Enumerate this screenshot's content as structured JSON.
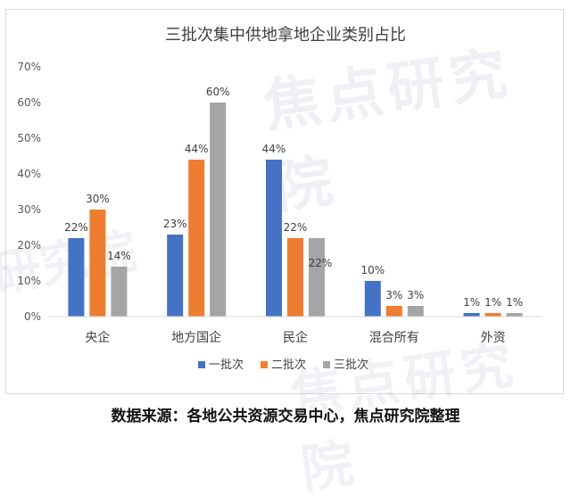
{
  "chart_data": {
    "type": "bar",
    "title": "三批次集中供地拿地企业类别占比",
    "categories": [
      "央企",
      "地方国企",
      "民企",
      "混合所有",
      "外资"
    ],
    "series": [
      {
        "name": "一批次",
        "color": "#4472C4",
        "values": [
          22,
          23,
          44,
          10,
          1
        ]
      },
      {
        "name": "二批次",
        "color": "#ED7D31",
        "values": [
          30,
          44,
          22,
          3,
          1
        ]
      },
      {
        "name": "三批次",
        "color": "#A5A5A5",
        "values": [
          14,
          60,
          22,
          3,
          1
        ]
      }
    ],
    "value_suffix": "%",
    "ylim": [
      0,
      70
    ],
    "yticks": [
      "0%",
      "10%",
      "20%",
      "30%",
      "40%",
      "50%",
      "60%",
      "70%"
    ],
    "grid": false,
    "legend": "bottom"
  },
  "source_note": "数据来源：各地公共资源交易中心，焦点研究院整理",
  "watermark": "焦点研究院"
}
